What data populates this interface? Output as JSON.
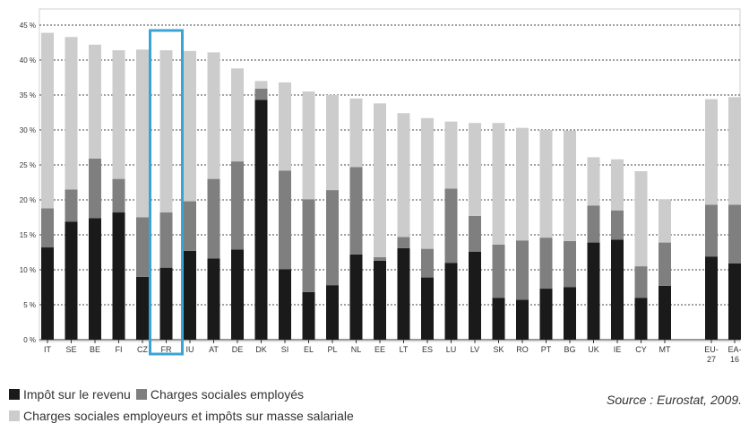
{
  "chart_data": {
    "type": "bar",
    "stacked": true,
    "categories": [
      "IT",
      "SE",
      "BE",
      "FI",
      "CZ",
      "FR",
      "IU",
      "AT",
      "DE",
      "DK",
      "SI",
      "EL",
      "PL",
      "NL",
      "EE",
      "LT",
      "ES",
      "LU",
      "LV",
      "SK",
      "RO",
      "PT",
      "BG",
      "UK",
      "IE",
      "CY",
      "MT",
      "EU-27",
      "EA-16"
    ],
    "series": [
      {
        "name": "Impôt sur le revenu",
        "color": "#1a1a1a",
        "values": [
          13.2,
          16.9,
          17.4,
          18.2,
          9.0,
          10.3,
          12.7,
          11.6,
          12.9,
          34.3,
          10.1,
          6.8,
          7.8,
          12.2,
          11.3,
          13.1,
          8.9,
          11.0,
          12.6,
          6.0,
          5.7,
          7.3,
          7.5,
          13.9,
          14.3,
          6.0,
          7.7,
          11.9,
          10.9
        ]
      },
      {
        "name": "Charges sociales employés",
        "color": "#7f7f7f",
        "values": [
          5.6,
          4.6,
          8.5,
          4.8,
          8.5,
          7.9,
          7.1,
          11.4,
          12.6,
          1.6,
          14.1,
          13.3,
          13.6,
          12.5,
          0.5,
          1.6,
          4.1,
          10.6,
          5.1,
          7.6,
          8.5,
          7.3,
          6.6,
          5.3,
          4.2,
          4.5,
          6.2,
          7.4,
          8.4
        ]
      },
      {
        "name": "Charges sociales employeurs et impôts sur masse salariale",
        "color": "#cccccc",
        "values": [
          25.1,
          21.8,
          16.3,
          18.4,
          24.0,
          23.2,
          21.5,
          18.1,
          13.3,
          1.1,
          12.6,
          15.4,
          13.6,
          9.8,
          22.0,
          17.7,
          18.7,
          9.6,
          13.3,
          17.4,
          16.1,
          15.4,
          15.8,
          6.9,
          7.3,
          13.6,
          6.2,
          15.1,
          15.4
        ]
      }
    ],
    "y_ticks": [
      "0 %",
      "5 %",
      "10 %",
      "15 %",
      "20 %",
      "25 %",
      "30 %",
      "35 %",
      "40 %",
      "45 %"
    ],
    "ylim": [
      0,
      45
    ],
    "highlighted_category": "FR",
    "highlight_color": "#3ba4d6",
    "grid": true
  },
  "legend": {
    "items": [
      {
        "label": "Impôt sur le revenu",
        "color": "#1a1a1a"
      },
      {
        "label": "Charges sociales employés",
        "color": "#7f7f7f"
      },
      {
        "label": "Charges sociales employeurs et impôts sur masse salariale",
        "color": "#cccccc"
      }
    ]
  },
  "source": "Source : Eurostat, 2009."
}
